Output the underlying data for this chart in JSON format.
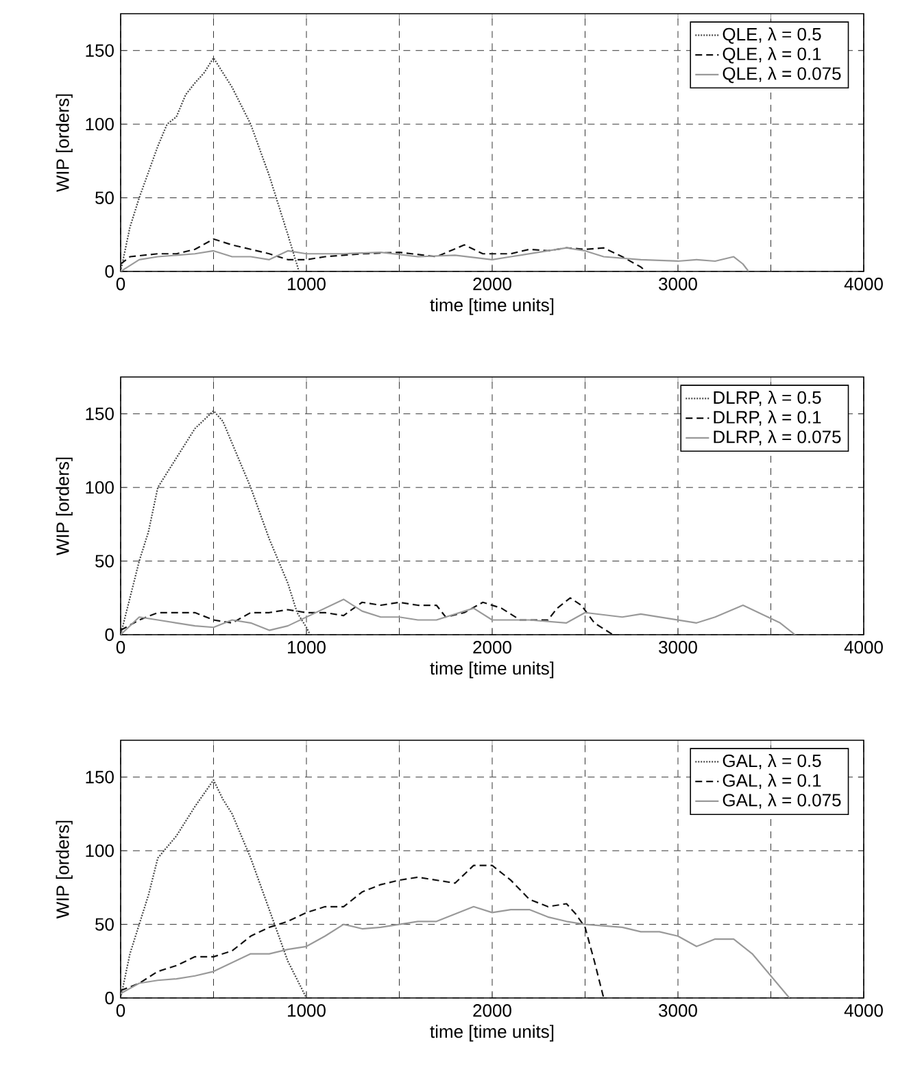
{
  "chart_data": [
    {
      "type": "line",
      "xlabel": "time [time units]",
      "ylabel": "WIP [orders]",
      "xlim": [
        0,
        4000
      ],
      "ylim": [
        0,
        175
      ],
      "xticks": [
        0,
        {
          "value": 500,
          "label": null
        },
        1000,
        {
          "value": 1500,
          "label": null
        },
        2000,
        {
          "value": 2500,
          "label": null
        },
        3000,
        {
          "value": 3500,
          "label": null
        },
        4000
      ],
      "yticks": [
        0,
        50,
        100,
        150
      ],
      "grid": true,
      "legend": "top right",
      "series": [
        {
          "name": "QLE, λ = 0.5",
          "color": "#444444",
          "line_style": "dotted",
          "x": [
            0,
            50,
            100,
            200,
            250,
            300,
            350,
            400,
            450,
            500,
            550,
            600,
            700,
            800,
            900,
            960
          ],
          "values": [
            0,
            30,
            50,
            85,
            100,
            105,
            120,
            128,
            135,
            145,
            135,
            125,
            100,
            65,
            25,
            0
          ]
        },
        {
          "name": "QLE, λ = 0.1",
          "color": "#111111",
          "line_style": "dashed",
          "x": [
            0,
            50,
            200,
            300,
            400,
            500,
            600,
            700,
            800,
            900,
            1000,
            1100,
            1300,
            1500,
            1700,
            1850,
            1950,
            2100,
            2200,
            2300,
            2400,
            2500,
            2600,
            2700,
            2800,
            2830
          ],
          "values": [
            5,
            10,
            12,
            12,
            15,
            22,
            18,
            15,
            12,
            8,
            8,
            10,
            12,
            13,
            10,
            18,
            12,
            12,
            15,
            14,
            16,
            15,
            16,
            10,
            3,
            0
          ]
        },
        {
          "name": "QLE, λ = 0.075",
          "color": "#999999",
          "line_style": "solid",
          "x": [
            0,
            100,
            200,
            300,
            400,
            500,
            600,
            700,
            800,
            900,
            1000,
            1200,
            1400,
            1600,
            1800,
            2000,
            2100,
            2300,
            2400,
            2500,
            2600,
            2800,
            3000,
            3100,
            3200,
            3300,
            3350,
            3380
          ],
          "values": [
            0,
            8,
            10,
            11,
            12,
            14,
            10,
            10,
            8,
            14,
            12,
            12,
            13,
            10,
            11,
            8,
            10,
            14,
            16,
            14,
            10,
            8,
            7,
            8,
            7,
            10,
            5,
            0
          ]
        }
      ]
    },
    {
      "type": "line",
      "xlabel": "time [time units]",
      "ylabel": "WIP [orders]",
      "xlim": [
        0,
        4000
      ],
      "ylim": [
        0,
        175
      ],
      "xticks": [
        0,
        {
          "value": 500,
          "label": null
        },
        1000,
        {
          "value": 1500,
          "label": null
        },
        2000,
        {
          "value": 2500,
          "label": null
        },
        3000,
        {
          "value": 3500,
          "label": null
        },
        4000
      ],
      "yticks": [
        0,
        50,
        100,
        150
      ],
      "grid": true,
      "legend": "top right",
      "series": [
        {
          "name": "DLRP, λ = 0.5",
          "color": "#444444",
          "line_style": "dotted",
          "x": [
            0,
            50,
            100,
            150,
            200,
            300,
            400,
            500,
            550,
            600,
            700,
            800,
            900,
            950,
            1000,
            1020
          ],
          "values": [
            0,
            25,
            50,
            70,
            100,
            120,
            140,
            152,
            145,
            130,
            100,
            65,
            35,
            15,
            5,
            0
          ]
        },
        {
          "name": "DLRP, λ = 0.1",
          "color": "#111111",
          "line_style": "dashed",
          "x": [
            0,
            100,
            200,
            300,
            400,
            500,
            600,
            700,
            800,
            900,
            1000,
            1100,
            1200,
            1300,
            1400,
            1500,
            1600,
            1700,
            1750,
            1850,
            1950,
            2050,
            2150,
            2300,
            2350,
            2420,
            2480,
            2550,
            2650
          ],
          "values": [
            3,
            10,
            15,
            15,
            15,
            10,
            8,
            15,
            15,
            17,
            15,
            15,
            13,
            22,
            20,
            22,
            20,
            20,
            12,
            15,
            22,
            18,
            10,
            10,
            18,
            25,
            20,
            8,
            0
          ]
        },
        {
          "name": "DLRP, λ = 0.075",
          "color": "#999999",
          "line_style": "solid",
          "x": [
            0,
            100,
            200,
            300,
            400,
            500,
            600,
            700,
            800,
            900,
            1000,
            1100,
            1200,
            1300,
            1400,
            1500,
            1600,
            1700,
            1900,
            2000,
            2200,
            2400,
            2500,
            2700,
            2800,
            3000,
            3100,
            3200,
            3350,
            3450,
            3550,
            3630
          ],
          "values": [
            0,
            12,
            10,
            8,
            6,
            5,
            10,
            8,
            3,
            6,
            12,
            18,
            24,
            16,
            12,
            12,
            10,
            10,
            18,
            10,
            10,
            8,
            15,
            12,
            14,
            10,
            8,
            12,
            20,
            14,
            8,
            0
          ]
        }
      ]
    },
    {
      "type": "line",
      "xlabel": "time [time units]",
      "ylabel": "WIP [orders]",
      "xlim": [
        0,
        4000
      ],
      "ylim": [
        0,
        175
      ],
      "xticks": [
        0,
        {
          "value": 500,
          "label": null
        },
        1000,
        {
          "value": 1500,
          "label": null
        },
        2000,
        {
          "value": 2500,
          "label": null
        },
        3000,
        {
          "value": 3500,
          "label": null
        },
        4000
      ],
      "yticks": [
        0,
        50,
        100,
        150
      ],
      "grid": true,
      "legend": "top right",
      "series": [
        {
          "name": "GAL, λ = 0.5",
          "color": "#444444",
          "line_style": "dotted",
          "x": [
            0,
            50,
            100,
            150,
            200,
            300,
            400,
            500,
            550,
            600,
            700,
            800,
            900,
            1000
          ],
          "values": [
            0,
            30,
            50,
            70,
            95,
            110,
            130,
            148,
            135,
            125,
            95,
            60,
            25,
            0
          ]
        },
        {
          "name": "GAL, λ = 0.1",
          "color": "#111111",
          "line_style": "dashed",
          "x": [
            0,
            100,
            200,
            300,
            400,
            500,
            600,
            700,
            800,
            900,
            1000,
            1100,
            1200,
            1300,
            1400,
            1500,
            1600,
            1700,
            1800,
            1900,
            2000,
            2100,
            2200,
            2300,
            2400,
            2450,
            2500,
            2550,
            2600
          ],
          "values": [
            5,
            10,
            18,
            22,
            28,
            28,
            32,
            42,
            48,
            52,
            58,
            62,
            62,
            72,
            77,
            80,
            82,
            80,
            78,
            90,
            90,
            80,
            67,
            62,
            64,
            57,
            48,
            25,
            0
          ]
        },
        {
          "name": "GAL, λ = 0.075",
          "color": "#999999",
          "line_style": "solid",
          "x": [
            0,
            100,
            200,
            300,
            400,
            500,
            600,
            700,
            800,
            900,
            1000,
            1100,
            1200,
            1300,
            1400,
            1500,
            1600,
            1700,
            1800,
            1900,
            2000,
            2100,
            2200,
            2300,
            2400,
            2500,
            2700,
            2800,
            2900,
            3000,
            3100,
            3200,
            3300,
            3400,
            3500,
            3600
          ],
          "values": [
            3,
            10,
            12,
            13,
            15,
            18,
            24,
            30,
            30,
            33,
            35,
            42,
            50,
            47,
            48,
            50,
            52,
            52,
            57,
            62,
            58,
            60,
            60,
            55,
            52,
            50,
            48,
            45,
            45,
            42,
            35,
            40,
            40,
            30,
            15,
            0
          ]
        }
      ]
    }
  ]
}
